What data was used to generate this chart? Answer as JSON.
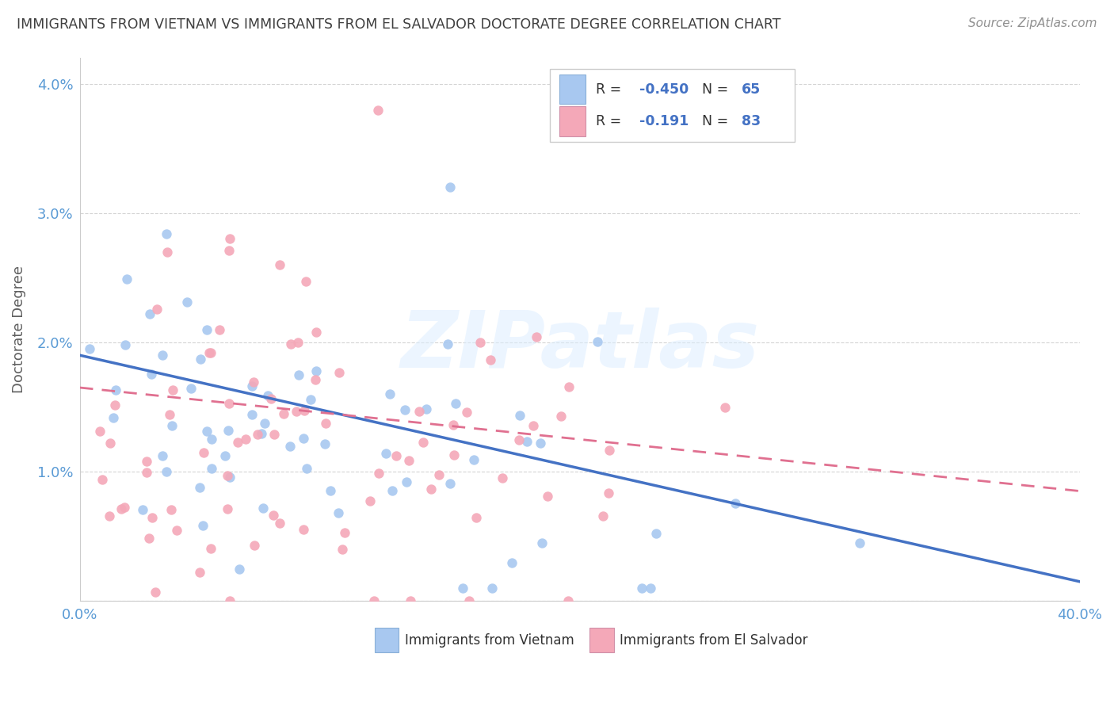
{
  "title": "IMMIGRANTS FROM VIETNAM VS IMMIGRANTS FROM EL SALVADOR DOCTORATE DEGREE CORRELATION CHART",
  "source": "Source: ZipAtlas.com",
  "ylabel": "Doctorate Degree",
  "xlim": [
    0.0,
    0.4
  ],
  "ylim": [
    0.0,
    0.042
  ],
  "vietnam_color": "#a8c8f0",
  "el_salvador_color": "#f4a8b8",
  "vietnam_line_color": "#4472c4",
  "el_salvador_line_color": "#e07090",
  "vietnam_R": -0.45,
  "vietnam_N": 65,
  "el_salvador_R": -0.191,
  "el_salvador_N": 83,
  "legend_label_vietnam": "Immigrants from Vietnam",
  "legend_label_el_salvador": "Immigrants from El Salvador",
  "watermark": "ZIPatlas",
  "background_color": "#ffffff",
  "grid_color": "#d0d0d0",
  "title_color": "#404040",
  "axis_tick_color": "#5b9bd5",
  "ylabel_color": "#606060",
  "source_color": "#909090",
  "scatter_size": 80,
  "vietnam_line_start_y": 0.019,
  "vietnam_line_end_y": 0.0015,
  "el_salvador_line_start_y": 0.0165,
  "el_salvador_line_end_y": 0.0085
}
